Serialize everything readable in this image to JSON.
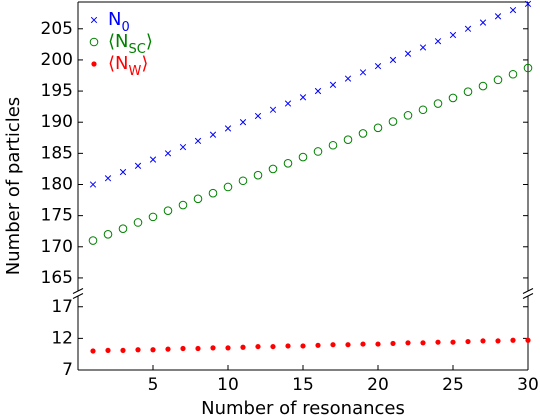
{
  "chart_data": [
    {
      "type": "scatter",
      "ylabel": "Number of particles",
      "x": [
        1,
        2,
        3,
        4,
        5,
        6,
        7,
        8,
        9,
        10,
        11,
        12,
        13,
        14,
        15,
        16,
        17,
        18,
        19,
        20,
        21,
        22,
        23,
        24,
        25,
        26,
        27,
        28,
        29,
        30
      ],
      "series": [
        {
          "name": "N0",
          "color": "#0000ff",
          "marker": "x",
          "values": [
            180,
            181,
            182,
            183,
            184,
            185,
            186,
            187,
            188,
            189,
            190,
            191,
            192,
            193,
            194,
            195,
            196,
            197,
            198,
            199,
            200,
            201,
            202,
            203,
            204,
            205,
            206,
            207,
            208,
            209
          ]
        },
        {
          "name": "⟨NSC⟩",
          "color": "#008000",
          "marker": "open-circle",
          "values": [
            171.0,
            172.0,
            172.9,
            173.9,
            174.8,
            175.8,
            176.7,
            177.7,
            178.6,
            179.6,
            180.6,
            181.5,
            182.5,
            183.4,
            184.4,
            185.3,
            186.3,
            187.2,
            188.2,
            189.1,
            190.1,
            191.1,
            192.0,
            193.0,
            193.9,
            194.9,
            195.8,
            196.8,
            197.7,
            198.7
          ]
        }
      ],
      "xlim": [
        0,
        30
      ],
      "ylim": [
        162.9,
        209.3
      ],
      "yticks": [
        165,
        170,
        175,
        180,
        185,
        190,
        195,
        200,
        205
      ],
      "legend": "upper left"
    },
    {
      "type": "scatter",
      "xlabel": "Number of resonances",
      "x": [
        1,
        2,
        3,
        4,
        5,
        6,
        7,
        8,
        9,
        10,
        11,
        12,
        13,
        14,
        15,
        16,
        17,
        18,
        19,
        20,
        21,
        22,
        23,
        24,
        25,
        26,
        27,
        28,
        29,
        30
      ],
      "series": [
        {
          "name": "⟨NW⟩",
          "color": "#ff0000",
          "marker": "dot",
          "values": [
            10.0,
            10.1,
            10.1,
            10.2,
            10.2,
            10.3,
            10.4,
            10.4,
            10.5,
            10.5,
            10.6,
            10.7,
            10.7,
            10.8,
            10.8,
            10.9,
            11.0,
            11.0,
            11.1,
            11.1,
            11.2,
            11.3,
            11.3,
            11.4,
            11.4,
            11.5,
            11.6,
            11.6,
            11.7,
            11.7
          ]
        }
      ],
      "xlim": [
        0,
        30
      ],
      "xticks": [
        5,
        10,
        15,
        20,
        25,
        30
      ],
      "ylim": [
        7,
        18.7
      ],
      "yticks": [
        7,
        12,
        17
      ]
    }
  ]
}
